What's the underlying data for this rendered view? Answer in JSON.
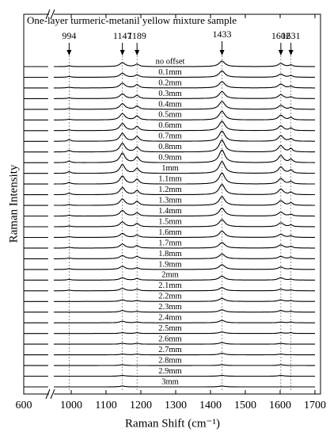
{
  "chart_data": {
    "type": "stacked-spectra",
    "title": "One-layer turmeric-metanil yellow mixture sample",
    "x_label": "Raman Shift (cm⁻¹)",
    "y_label": "Raman Intensity",
    "xlim": [
      600,
      1700
    ],
    "xbreak": [
      670,
      950
    ],
    "xticks": [
      600,
      1000,
      1100,
      1200,
      1300,
      1400,
      1500,
      1600,
      1700
    ],
    "peaks": [
      994,
      1147,
      1189,
      1433,
      1602,
      1631
    ],
    "color": "#000000",
    "series": [
      {
        "name": "no offset",
        "values": [
          1,
          5,
          3,
          7,
          4,
          2
        ]
      },
      {
        "name": "0.1mm",
        "values": [
          1,
          5,
          3,
          8,
          4,
          2
        ]
      },
      {
        "name": "0.2mm",
        "values": [
          1,
          6,
          4,
          8,
          5,
          2
        ]
      },
      {
        "name": "0.3mm",
        "values": [
          1,
          6,
          4,
          9,
          5,
          2
        ]
      },
      {
        "name": "0.4mm",
        "values": [
          1,
          7,
          4,
          10,
          5,
          2
        ]
      },
      {
        "name": "0.5mm",
        "values": [
          1,
          8,
          5,
          11,
          6,
          3
        ]
      },
      {
        "name": "0.6mm",
        "values": [
          1,
          9,
          5,
          12,
          6,
          3
        ]
      },
      {
        "name": "0.7mm",
        "values": [
          2,
          10,
          6,
          13,
          7,
          3
        ]
      },
      {
        "name": "0.8mm",
        "values": [
          2,
          11,
          6,
          15,
          8,
          4
        ]
      },
      {
        "name": "0.9mm",
        "values": [
          2,
          12,
          7,
          16,
          9,
          4
        ]
      },
      {
        "name": "1mm",
        "values": [
          2,
          11,
          6,
          15,
          8,
          4
        ]
      },
      {
        "name": "1.1mm",
        "values": [
          2,
          10,
          6,
          14,
          7,
          3
        ]
      },
      {
        "name": "1.2mm",
        "values": [
          2,
          9,
          5,
          13,
          7,
          3
        ]
      },
      {
        "name": "1.3mm",
        "values": [
          1,
          8,
          5,
          11,
          6,
          3
        ]
      },
      {
        "name": "1.4mm",
        "values": [
          1,
          7,
          4,
          10,
          5,
          2
        ]
      },
      {
        "name": "1.5mm",
        "values": [
          1,
          6,
          4,
          9,
          5,
          2
        ]
      },
      {
        "name": "1.6mm",
        "values": [
          1,
          5,
          3,
          8,
          4,
          2
        ]
      },
      {
        "name": "1.7mm",
        "values": [
          1,
          5,
          3,
          7,
          4,
          2
        ]
      },
      {
        "name": "1.8mm",
        "values": [
          1,
          4,
          3,
          6,
          3,
          2
        ]
      },
      {
        "name": "1.9mm",
        "values": [
          1,
          4,
          2,
          6,
          3,
          1
        ]
      },
      {
        "name": "2mm",
        "values": [
          1,
          3,
          2,
          5,
          3,
          1
        ]
      },
      {
        "name": "2.1mm",
        "values": [
          1,
          3,
          2,
          4,
          2,
          1
        ]
      },
      {
        "name": "2.2mm",
        "values": [
          0,
          2,
          1,
          4,
          2,
          1
        ]
      },
      {
        "name": "2.3mm",
        "values": [
          0,
          2,
          1,
          3,
          2,
          1
        ]
      },
      {
        "name": "2.4mm",
        "values": [
          0,
          2,
          1,
          3,
          1,
          1
        ]
      },
      {
        "name": "2.5mm",
        "values": [
          0,
          1,
          1,
          2,
          1,
          1
        ]
      },
      {
        "name": "2.6mm",
        "values": [
          0,
          1,
          1,
          2,
          1,
          0
        ]
      },
      {
        "name": "2.7mm",
        "values": [
          0,
          1,
          1,
          2,
          1,
          0
        ]
      },
      {
        "name": "2.8mm",
        "values": [
          0,
          1,
          0,
          1,
          1,
          0
        ]
      },
      {
        "name": "2.9mm",
        "values": [
          0,
          1,
          0,
          1,
          1,
          0
        ]
      },
      {
        "name": "3mm",
        "values": [
          0,
          1,
          0,
          1,
          0,
          0
        ]
      }
    ]
  }
}
